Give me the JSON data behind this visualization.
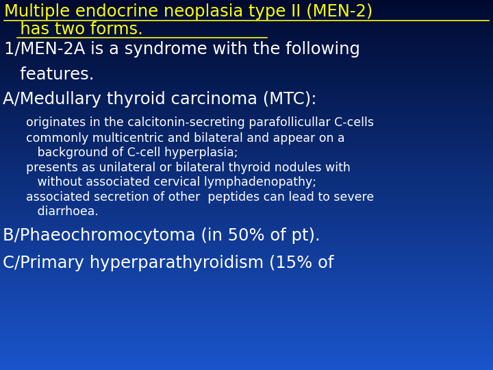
{
  "bg_color": "#1a4aaa",
  "bg_top_color": "#000a30",
  "title_text_line1": "Multiple endocrine neoplasia type II (MEN-2)",
  "title_text_line2": "   has two forms.",
  "title_color": "#ffff00",
  "title_fontsize": 17.5,
  "body_items": [
    {
      "text": "1/MEN-2A is a syndrome with the following",
      "color": "#ffffff",
      "fontsize": 17.5,
      "x": 8,
      "indent2": 25
    },
    {
      "text": "   features.",
      "color": "#ffffff",
      "fontsize": 17.5,
      "x": 8,
      "indent2": null
    },
    {
      "text": "A/Medullary thyroid carcinoma (MTC):",
      "color": "#ffffff",
      "fontsize": 17.5,
      "x": 5,
      "indent2": null
    },
    {
      "text": "originates in the calcitonin-secreting parafollicullar C-cells",
      "color": "#ffffff",
      "fontsize": 12.5,
      "x": 38,
      "indent2": null
    },
    {
      "text": "commonly multicentric and bilateral and appear on a",
      "color": "#ffffff",
      "fontsize": 12.5,
      "x": 38,
      "indent2": null
    },
    {
      "text": "   background of C-cell hyperplasia;",
      "color": "#ffffff",
      "fontsize": 12.5,
      "x": 38,
      "indent2": null
    },
    {
      "text": "presents as unilateral or bilateral thyroid nodules with",
      "color": "#ffffff",
      "fontsize": 12.5,
      "x": 38,
      "indent2": null
    },
    {
      "text": "   without associated cervical lymphadenopathy;",
      "color": "#ffffff",
      "fontsize": 12.5,
      "x": 38,
      "indent2": null
    },
    {
      "text": "associated secretion of other  peptides can lead to severe",
      "color": "#ffffff",
      "fontsize": 12.5,
      "x": 38,
      "indent2": null
    },
    {
      "text": "   diarrhoea.",
      "color": "#ffffff",
      "fontsize": 12.5,
      "x": 38,
      "indent2": null
    },
    {
      "text": "B/Phaeochromocytoma (in 50% of pt).",
      "color": "#ffffff",
      "fontsize": 17.5,
      "x": 5,
      "indent2": null
    },
    {
      "text": "C/Primary hyperparathyroidism (15% of",
      "color": "#ffffff",
      "fontsize": 17.5,
      "x": 5,
      "indent2": null
    }
  ],
  "line_heights_pts": [
    35,
    17,
    35,
    27,
    27,
    17,
    27,
    17,
    27,
    17,
    35,
    35
  ],
  "figw": 7.2,
  "figh": 5.4,
  "dpi": 100
}
